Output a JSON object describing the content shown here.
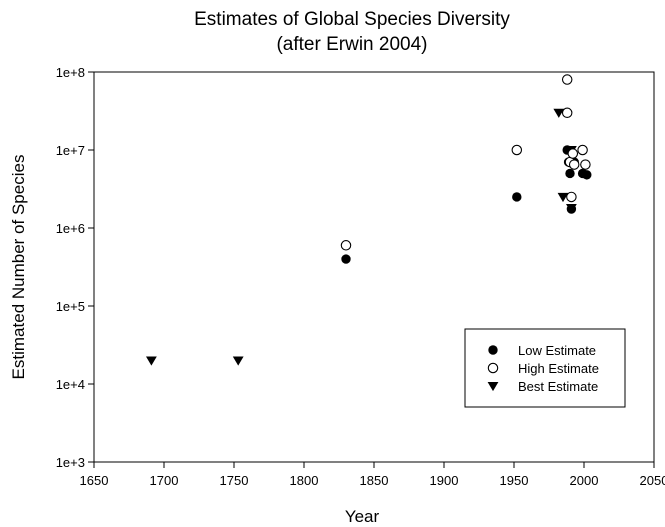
{
  "chart_data": {
    "type": "scatter",
    "title": "Estimates of Global Species Diversity",
    "subtitle": "(after Erwin 2004)",
    "xlabel": "Year",
    "ylabel": "Estimated Number of Species",
    "xlim": [
      1650,
      2050
    ],
    "ylim": [
      1000,
      100000000
    ],
    "yscale": "log",
    "xticks": [
      1650,
      1700,
      1750,
      1800,
      1850,
      1900,
      1950,
      2000,
      2050
    ],
    "yticks": [
      {
        "value": 1000,
        "label": "1e+3"
      },
      {
        "value": 10000,
        "label": "1e+4"
      },
      {
        "value": 100000,
        "label": "1e+5"
      },
      {
        "value": 1000000,
        "label": "1e+6"
      },
      {
        "value": 10000000,
        "label": "1e+7"
      },
      {
        "value": 100000000,
        "label": "1e+8"
      }
    ],
    "grid": false,
    "legend_position": "bottom-right",
    "series": [
      {
        "name": "Low Estimate",
        "marker": "filled-circle",
        "color": "#000000",
        "points": [
          {
            "x": 1830,
            "y": 400000
          },
          {
            "x": 1952,
            "y": 2500000
          },
          {
            "x": 1988,
            "y": 10000000
          },
          {
            "x": 1989,
            "y": 7000000
          },
          {
            "x": 1990,
            "y": 5000000
          },
          {
            "x": 1993,
            "y": 7000000
          },
          {
            "x": 1999,
            "y": 5000000
          },
          {
            "x": 2002,
            "y": 4800000
          },
          {
            "x": 1991,
            "y": 1750000
          }
        ]
      },
      {
        "name": "High Estimate",
        "marker": "open-circle",
        "color": "#000000",
        "points": [
          {
            "x": 1830,
            "y": 600000
          },
          {
            "x": 1952,
            "y": 10000000
          },
          {
            "x": 1988,
            "y": 80000000
          },
          {
            "x": 1988,
            "y": 30000000
          },
          {
            "x": 1990,
            "y": 7000000
          },
          {
            "x": 1992,
            "y": 9000000
          },
          {
            "x": 1993,
            "y": 6500000
          },
          {
            "x": 1999,
            "y": 10000000
          },
          {
            "x": 2001,
            "y": 6500000
          },
          {
            "x": 1991,
            "y": 2500000
          }
        ]
      },
      {
        "name": "Best Estimate",
        "marker": "filled-triangle-down",
        "color": "#000000",
        "points": [
          {
            "x": 1691,
            "y": 20000
          },
          {
            "x": 1753,
            "y": 20000
          },
          {
            "x": 1982,
            "y": 30000000
          },
          {
            "x": 1985,
            "y": 2500000
          },
          {
            "x": 1991,
            "y": 10000000
          },
          {
            "x": 1991,
            "y": 1800000
          }
        ]
      }
    ]
  }
}
